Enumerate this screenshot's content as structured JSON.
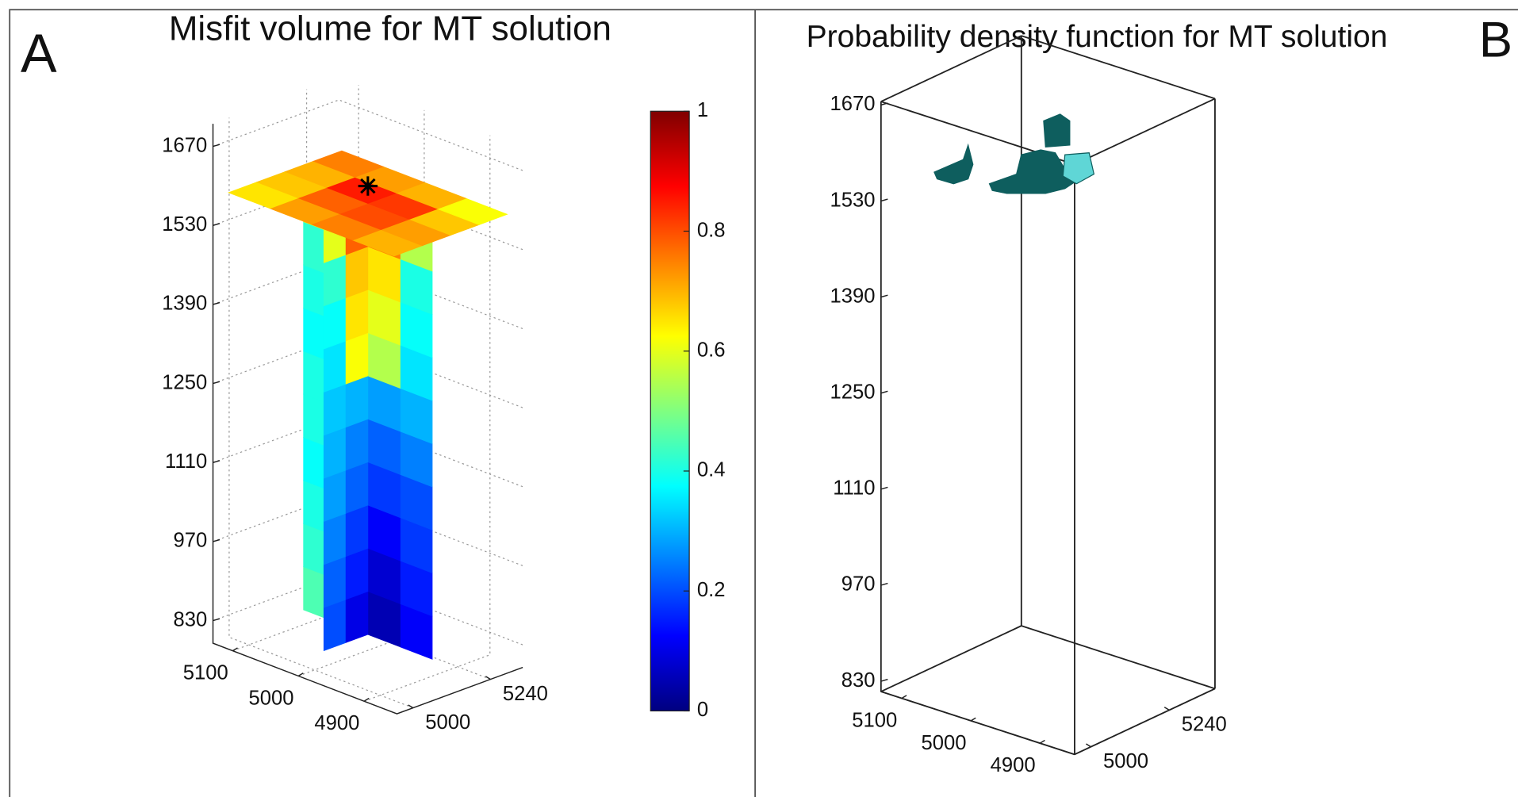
{
  "chart_data": [
    {
      "type": "slice3d",
      "label": "A",
      "title": "Misfit volume for MT solution",
      "xlim": [
        4850,
        5130
      ],
      "ylim": [
        4950,
        5340
      ],
      "zlim": [
        790,
        1710
      ],
      "xticks": [
        4900,
        5000,
        5100
      ],
      "yticks": [
        5000,
        5240
      ],
      "zticks": [
        830,
        970,
        1110,
        1250,
        1390,
        1530,
        1670
      ],
      "grid": true,
      "colormap": "jet",
      "clim": [
        0,
        1
      ],
      "cticks": [
        0,
        0.2,
        0.4,
        0.6,
        0.8,
        1
      ],
      "slices": [
        {
          "plane": "xz",
          "values": [
            [
              0.12,
              0.05,
              0.3,
              0.45
            ],
            [
              0.15,
              0.08,
              0.28,
              0.42
            ],
            [
              0.18,
              0.12,
              0.25,
              0.4
            ],
            [
              0.2,
              0.18,
              0.25,
              0.38
            ],
            [
              0.25,
              0.22,
              0.3,
              0.4
            ],
            [
              0.3,
              0.28,
              0.32,
              0.4
            ],
            [
              0.35,
              0.55,
              0.3,
              0.38
            ],
            [
              0.38,
              0.6,
              0.35,
              0.4
            ],
            [
              0.4,
              0.65,
              0.45,
              0.42
            ],
            [
              0.55,
              0.75,
              0.7,
              0.6
            ]
          ]
        },
        {
          "plane": "yz",
          "values": [
            [
              0.2,
              0.1,
              0.35,
              0.45
            ],
            [
              0.22,
              0.15,
              0.3,
              0.45
            ],
            [
              0.25,
              0.18,
              0.28,
              0.42
            ],
            [
              0.28,
              0.22,
              0.3,
              0.4
            ],
            [
              0.3,
              0.25,
              0.32,
              0.4
            ],
            [
              0.32,
              0.3,
              0.35,
              0.42
            ],
            [
              0.35,
              0.62,
              0.35,
              0.45
            ],
            [
              0.38,
              0.65,
              0.4,
              0.5
            ],
            [
              0.42,
              0.68,
              0.5,
              0.6
            ],
            [
              0.6,
              0.78,
              0.72,
              0.65
            ]
          ]
        },
        {
          "plane": "xy",
          "values": [
            [
              0.7,
              0.75,
              0.72,
              0.65
            ],
            [
              0.72,
              0.8,
              0.78,
              0.68
            ],
            [
              0.68,
              0.82,
              0.85,
              0.7
            ],
            [
              0.62,
              0.7,
              0.72,
              0.75
            ]
          ]
        }
      ]
    },
    {
      "type": "isosurface",
      "label": "B",
      "title": "Probability density function for MT solution",
      "xlim": [
        4850,
        5130
      ],
      "ylim": [
        4950,
        5380
      ],
      "zlim": [
        815,
        1675
      ],
      "xticks": [
        4900,
        5000,
        5100
      ],
      "yticks": [
        5000,
        5240
      ],
      "zticks": [
        830,
        970,
        1110,
        1250,
        1390,
        1530,
        1670
      ],
      "grid": false,
      "box": true,
      "color": "#0e5e5e"
    }
  ]
}
